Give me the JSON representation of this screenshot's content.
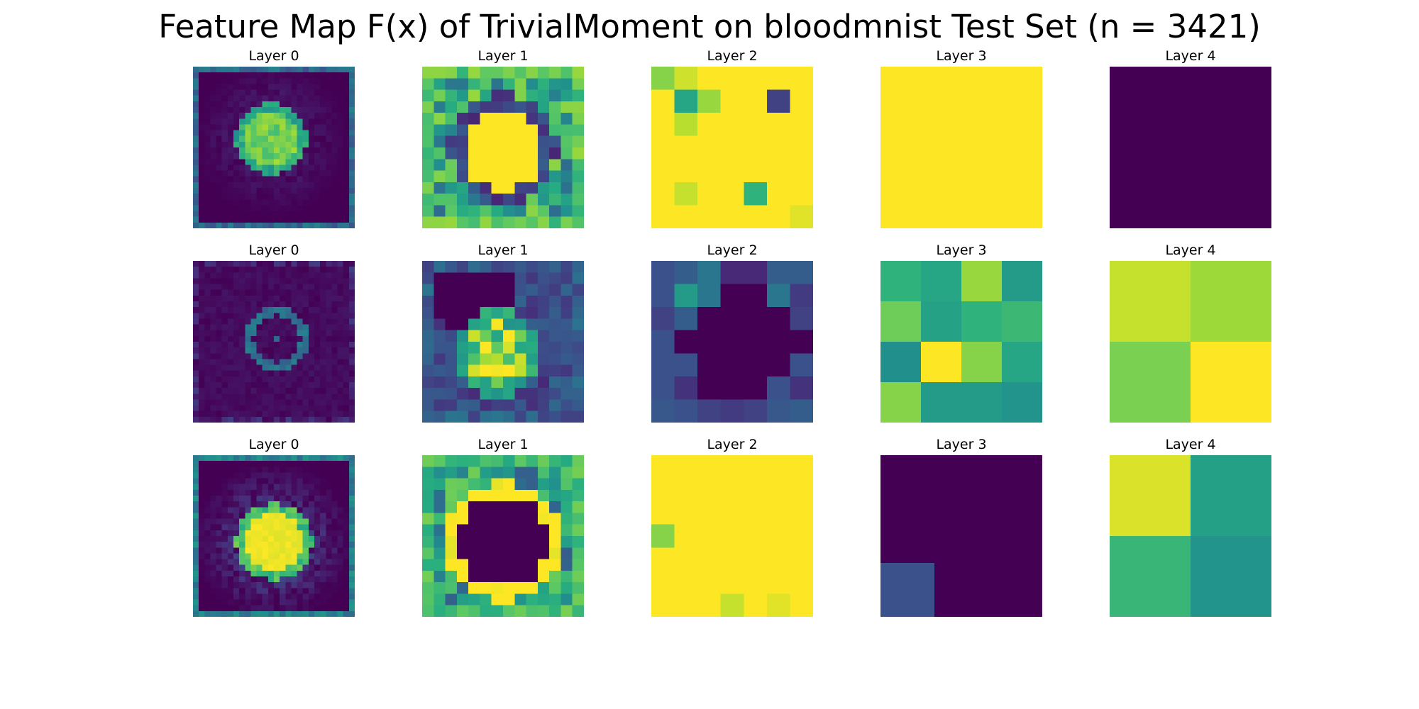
{
  "title": "Feature Map F(x) of TrivialMoment on bloodmnist Test Set (n = 3421)",
  "colormap": "viridis",
  "chart_data": {
    "type": "heatmap",
    "title": "Feature Map F(x) of TrivialMoment on bloodmnist Test Set (n = 3421)",
    "colormap": "viridis",
    "value_range": [
      0,
      1
    ],
    "axes_visible": false,
    "rows": [
      {
        "panels": [
          {
            "title": "Layer 0",
            "size": 28,
            "pattern": "cell",
            "params": {
              "cx": 13,
              "cy": 12,
              "r": 5.3,
              "inner": 0.88,
              "rim": 0.5,
              "bg": 0.0,
              "border": 0.35,
              "blur": 0.12,
              "noise": 0.18,
              "seed": 3
            }
          },
          {
            "title": "Layer 1",
            "size": 14,
            "pattern": "ring",
            "params": {
              "cx": 6.5,
              "cy": 6.6,
              "r": 3.5,
              "inner": 1.0,
              "rim": 0.1,
              "bg": 0.6,
              "border": 0.75,
              "noise": 0.25,
              "seed": 7
            }
          },
          {
            "title": "Layer 2",
            "grid": [
              [
                0.82,
                0.93,
                1,
                1,
                1,
                1,
                1
              ],
              [
                1,
                0.6,
                0.85,
                1,
                1,
                0.2,
                1
              ],
              [
                1,
                0.9,
                1,
                1,
                1,
                1,
                1
              ],
              [
                1,
                1,
                1,
                1,
                1,
                1,
                1
              ],
              [
                1,
                1,
                1,
                1,
                1,
                1,
                1
              ],
              [
                1,
                0.92,
                1,
                1,
                0.65,
                1,
                1
              ],
              [
                1,
                1,
                1,
                1,
                1,
                1,
                0.96
              ]
            ]
          },
          {
            "title": "Layer 3",
            "grid": [
              [
                1,
                1,
                1,
                1
              ],
              [
                1,
                1,
                1,
                1
              ],
              [
                1,
                1,
                1,
                1
              ],
              [
                1,
                1,
                1,
                1
              ]
            ]
          },
          {
            "title": "Layer 4",
            "grid": [
              [
                0,
                0
              ],
              [
                0,
                0
              ]
            ]
          }
        ]
      },
      {
        "panels": [
          {
            "title": "Layer 0",
            "size": 28,
            "pattern": "faint",
            "params": {
              "cx": 14,
              "cy": 13,
              "r": 4.8,
              "inner": 0.0,
              "rim": 0.3,
              "bg": 0.0,
              "border": 0.1,
              "noise": 0.06,
              "seed": 11
            }
          },
          {
            "title": "Layer 1",
            "size": 14,
            "pattern": "blob",
            "params": {
              "cx": 6,
              "cy": 7.5,
              "r": 2.6,
              "inner": 0.75,
              "rim": 0.5,
              "bg": 0.0,
              "border": 0.3,
              "noise": 0.2,
              "seed": 19
            }
          },
          {
            "title": "Layer 2",
            "grid": [
              [
                0.25,
                0.3,
                0.4,
                0.12,
                0.12,
                0.3,
                0.3
              ],
              [
                0.25,
                0.55,
                0.4,
                0.0,
                0.0,
                0.4,
                0.18
              ],
              [
                0.2,
                0.3,
                0.0,
                0.0,
                0.0,
                0.0,
                0.2
              ],
              [
                0.25,
                0.0,
                0.0,
                0.0,
                0.0,
                0.0,
                0.0
              ],
              [
                0.25,
                0.25,
                0.0,
                0.0,
                0.0,
                0.0,
                0.25
              ],
              [
                0.25,
                0.15,
                0.0,
                0.0,
                0.0,
                0.25,
                0.15
              ],
              [
                0.28,
                0.25,
                0.2,
                0.18,
                0.2,
                0.28,
                0.3
              ]
            ]
          },
          {
            "title": "Layer 3",
            "grid": [
              [
                0.65,
                0.6,
                0.85,
                0.55
              ],
              [
                0.78,
                0.58,
                0.65,
                0.68
              ],
              [
                0.5,
                1.0,
                0.82,
                0.6
              ],
              [
                0.82,
                0.55,
                0.55,
                0.52
              ]
            ]
          },
          {
            "title": "Layer 4",
            "grid": [
              [
                0.92,
                0.86
              ],
              [
                0.8,
                1.0
              ]
            ]
          }
        ]
      },
      {
        "panels": [
          {
            "title": "Layer 0",
            "size": 28,
            "pattern": "cell",
            "params": {
              "cx": 13.5,
              "cy": 14.5,
              "r": 5.8,
              "inner": 1.0,
              "rim": 0.6,
              "bg": 0.0,
              "border": 0.45,
              "blur": 0.25,
              "noise": 0.05,
              "seed": 23
            }
          },
          {
            "title": "Layer 1",
            "size": 14,
            "pattern": "ring",
            "params": {
              "cx": 6.5,
              "cy": 7.0,
              "r": 4.0,
              "inner": 0.0,
              "rim": 0.95,
              "bg": 0.55,
              "border": 0.7,
              "noise": 0.25,
              "seed": 29
            }
          },
          {
            "title": "Layer 2",
            "grid": [
              [
                1,
                1,
                1,
                1,
                1,
                1,
                1
              ],
              [
                1,
                1,
                1,
                1,
                1,
                1,
                1
              ],
              [
                1,
                1,
                1,
                1,
                1,
                1,
                1
              ],
              [
                0.82,
                1,
                1,
                1,
                1,
                1,
                1
              ],
              [
                1,
                1,
                1,
                1,
                1,
                1,
                1
              ],
              [
                1,
                1,
                1,
                1,
                1,
                1,
                1
              ],
              [
                1,
                1,
                1,
                0.92,
                1,
                0.96,
                1
              ]
            ]
          },
          {
            "title": "Layer 3",
            "grid": [
              [
                0,
                0,
                0
              ],
              [
                0,
                0,
                0
              ],
              [
                0.25,
                0,
                0
              ]
            ]
          },
          {
            "title": "Layer 4",
            "grid": [
              [
                0.95,
                0.57
              ],
              [
                0.67,
                0.52
              ]
            ]
          }
        ]
      }
    ]
  }
}
